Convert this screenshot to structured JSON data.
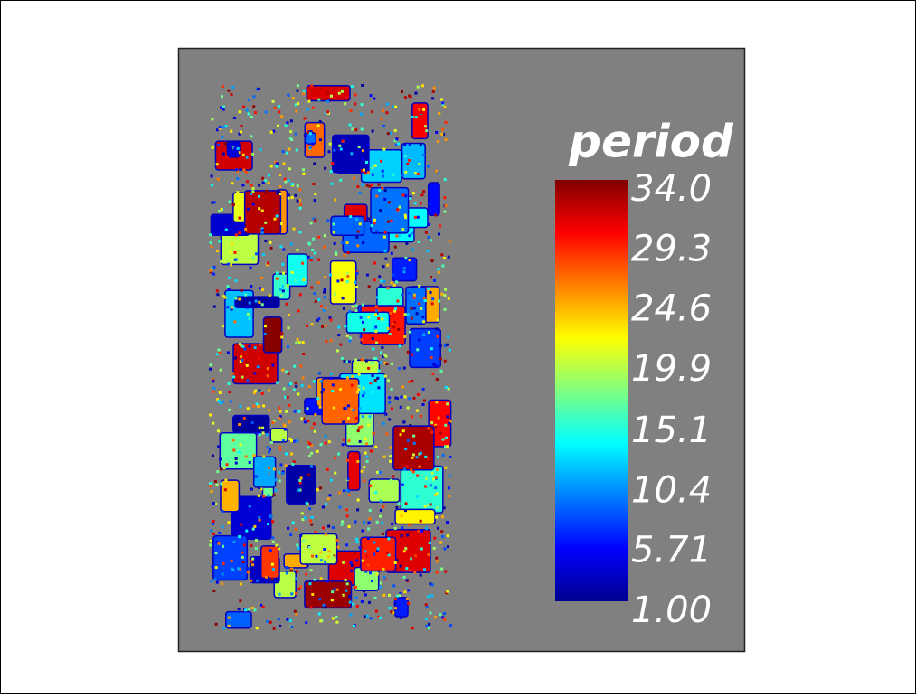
{
  "chart_data": {
    "type": "heatmap",
    "colorbar_title": "period",
    "colormap": "jet",
    "clim": [
      1,
      34
    ],
    "cticks": [
      {
        "value": 34,
        "label": "34.0"
      },
      29.3,
      24.6,
      19.9,
      15.1,
      10.4,
      5.71,
      {
        "value": 1,
        "label": "1.00"
      }
    ]
  }
}
